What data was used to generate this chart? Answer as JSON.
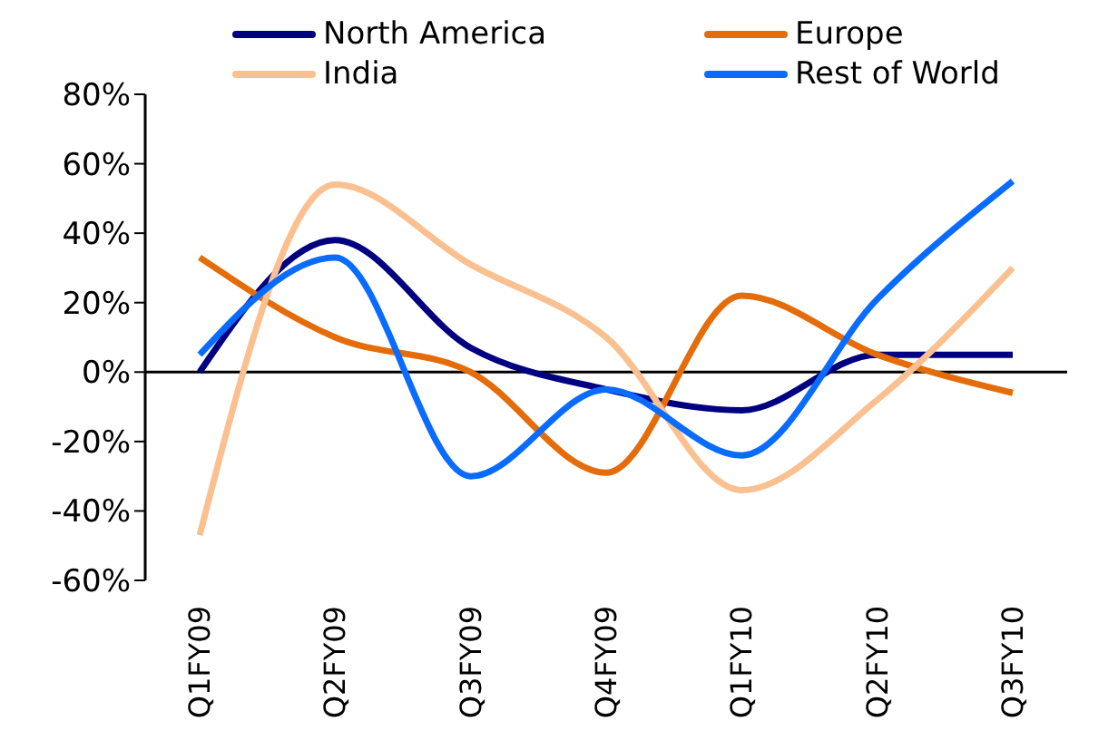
{
  "chart_data": {
    "type": "line",
    "categories": [
      "Q1FY09",
      "Q2FY09",
      "Q3FY09",
      "Q4FY09",
      "Q1FY10",
      "Q2FY10",
      "Q3FY10"
    ],
    "series": [
      {
        "name": "North America",
        "color": "#000080",
        "values": [
          0,
          38,
          7,
          -5,
          -11,
          5,
          5
        ]
      },
      {
        "name": "Europe",
        "color": "#e46c0a",
        "values": [
          33,
          10,
          0,
          -29,
          22,
          5,
          -6
        ]
      },
      {
        "name": "India",
        "color": "#fac090",
        "values": [
          -47,
          54,
          31,
          10,
          -34,
          -8,
          30
        ]
      },
      {
        "name": "Rest of World",
        "color": "#0a6cff",
        "values": [
          5,
          33,
          -30,
          -5,
          -24,
          21,
          55
        ]
      }
    ],
    "ylim": [
      -60,
      80
    ],
    "yticks": [
      {
        "value": -60,
        "label": "-60%"
      },
      {
        "value": -40,
        "label": "-40%"
      },
      {
        "value": -20,
        "label": "-20%"
      },
      {
        "value": 0,
        "label": "0%"
      },
      {
        "value": 20,
        "label": "20%"
      },
      {
        "value": 40,
        "label": "40%"
      },
      {
        "value": 60,
        "label": "60%"
      },
      {
        "value": 80,
        "label": "80%"
      }
    ],
    "ref_lines": [
      {
        "axis": "y",
        "value": 0,
        "color": "#000000"
      }
    ],
    "grid": false,
    "legend": "top",
    "marker": "none",
    "line_style": "solid"
  }
}
